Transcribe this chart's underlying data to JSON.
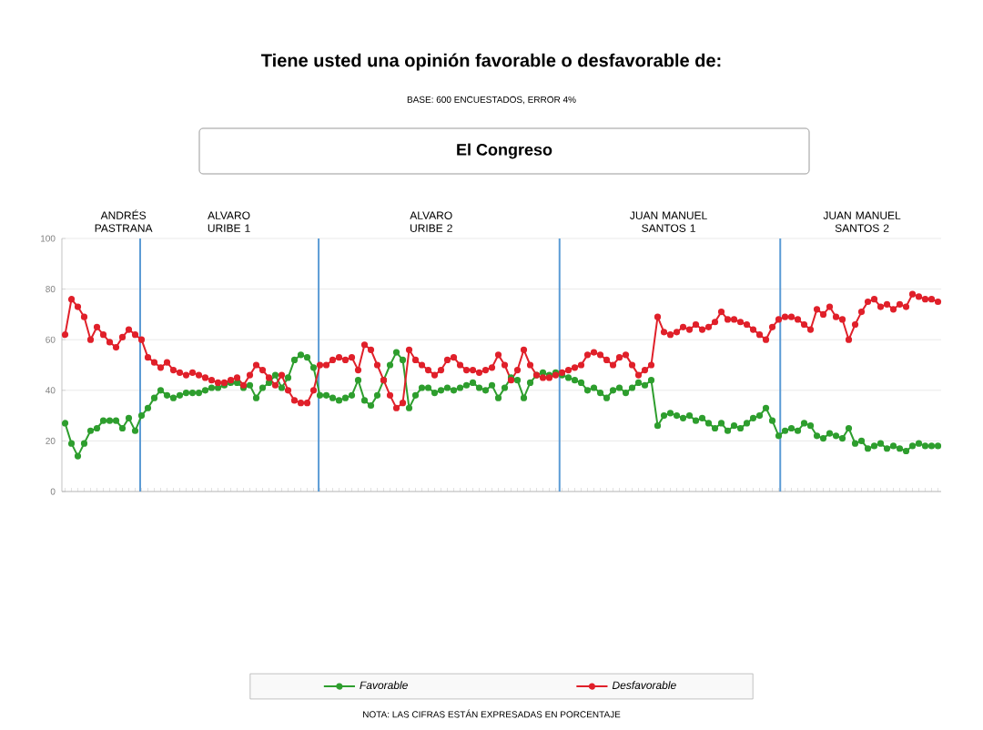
{
  "chart_data": {
    "type": "line",
    "title": "Tiene usted una opinión favorable o desfavorable de:",
    "subtitle": "BASE: 600 ENCUESTADOS, ERROR 4%",
    "annotations": [
      "El Congreso",
      "NOTA: LAS CIFRAS ESTÁN EXPRESADAS EN PORCENTAJE",
      "ANDRÉS PASTRANA",
      "ALVARO URIBE 1",
      "ALVARO URIBE 2",
      "JUAN MANUEL SANTOS 1",
      "JUAN MANUEL SANTOS 2"
    ],
    "categories": [
      null,
      null,
      null,
      null,
      null,
      null,
      null,
      null,
      null,
      null,
      null,
      null,
      null,
      null,
      null,
      null,
      null,
      null,
      null,
      null,
      null,
      null,
      null,
      null,
      null,
      null,
      null,
      null,
      null,
      null,
      null,
      null,
      null,
      null,
      null,
      null,
      null,
      null,
      null,
      null,
      null,
      null,
      null,
      null,
      null,
      null,
      null,
      null,
      null,
      null,
      null,
      null,
      null,
      null,
      null,
      null,
      null,
      null,
      null,
      null,
      null,
      null,
      null,
      null,
      null,
      null,
      null,
      null,
      null,
      null,
      null,
      null,
      null,
      null,
      null,
      null,
      null,
      null,
      null,
      null,
      null,
      null,
      null,
      null,
      null,
      null,
      null,
      null,
      null,
      null,
      null,
      null,
      null,
      null,
      null,
      null,
      null,
      null,
      null,
      null,
      null,
      null,
      null,
      null,
      null,
      null,
      null,
      null,
      null,
      null,
      null,
      null,
      null,
      null,
      null,
      null,
      null,
      null,
      null,
      null,
      null,
      null,
      null,
      null,
      null,
      null,
      null,
      null,
      null,
      null,
      null,
      null,
      null,
      null,
      null,
      null,
      null,
      null
    ],
    "series": [
      {
        "name": "Favorable",
        "color": "#2e9e2e",
        "values": [
          27,
          19,
          14,
          19,
          24,
          25,
          28,
          28,
          28,
          25,
          29,
          24,
          30,
          33,
          37,
          40,
          38,
          37,
          38,
          39,
          39,
          39,
          40,
          41,
          41,
          42,
          43,
          43,
          41,
          42,
          37,
          41,
          43,
          46,
          41,
          45,
          52,
          54,
          53,
          49,
          38,
          38,
          37,
          36,
          37,
          38,
          44,
          36,
          34,
          38,
          44,
          50,
          55,
          52,
          33,
          38,
          41,
          41,
          39,
          40,
          41,
          40,
          41,
          42,
          43,
          41,
          40,
          42,
          37,
          41,
          45,
          44,
          37,
          43,
          46,
          47,
          46,
          47,
          46,
          45,
          44,
          43,
          40,
          41,
          39,
          37,
          40,
          41,
          39,
          41,
          43,
          42,
          44,
          26,
          30,
          31,
          30,
          29,
          30,
          28,
          29,
          27,
          25,
          27,
          24,
          26,
          25,
          27,
          29,
          30,
          33,
          28,
          22,
          24,
          25,
          24,
          27,
          26,
          22,
          21,
          23,
          22,
          21,
          25,
          19,
          20,
          17,
          18,
          19,
          17,
          18,
          17,
          16,
          18,
          19,
          18,
          18,
          18
        ]
      },
      {
        "name": "Desfavorable",
        "color": "#e0202a",
        "values": [
          62,
          76,
          73,
          69,
          60,
          65,
          62,
          59,
          57,
          61,
          64,
          62,
          60,
          53,
          51,
          49,
          51,
          48,
          47,
          46,
          47,
          46,
          45,
          44,
          43,
          43,
          44,
          45,
          42,
          46,
          50,
          48,
          45,
          42,
          46,
          40,
          36,
          35,
          35,
          40,
          50,
          50,
          52,
          53,
          52,
          53,
          48,
          58,
          56,
          50,
          44,
          38,
          33,
          35,
          56,
          52,
          50,
          48,
          46,
          48,
          52,
          53,
          50,
          48,
          48,
          47,
          48,
          49,
          54,
          50,
          44,
          48,
          56,
          50,
          46,
          45,
          45,
          46,
          47,
          48,
          49,
          50,
          54,
          55,
          54,
          52,
          50,
          53,
          54,
          50,
          46,
          48,
          50,
          69,
          63,
          62,
          63,
          65,
          64,
          66,
          64,
          65,
          67,
          71,
          68,
          68,
          67,
          66,
          64,
          62,
          60,
          65,
          68,
          69,
          69,
          68,
          66,
          64,
          72,
          70,
          73,
          69,
          68,
          60,
          66,
          71,
          75,
          76,
          73,
          74,
          72,
          74,
          73,
          78,
          77,
          76,
          76,
          75
        ]
      }
    ],
    "ylim": [
      0,
      100
    ],
    "yticks": [
      0,
      20,
      40,
      60,
      80,
      100
    ],
    "grid": "y",
    "legend": "bottom",
    "marker": "circle",
    "line_style": "solid",
    "tick_labels": "y"
  }
}
